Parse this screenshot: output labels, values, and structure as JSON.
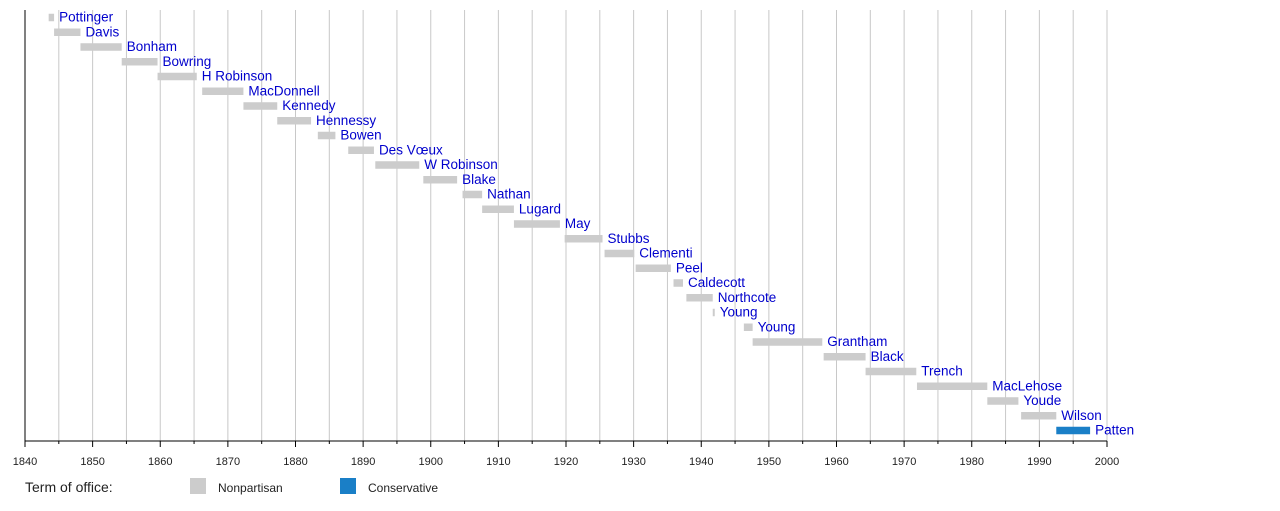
{
  "chart_data": {
    "type": "bar",
    "orientation": "horizontal-timeline",
    "xlim": [
      1840,
      2000
    ],
    "x_ticks": [
      "1840",
      "1850",
      "1860",
      "1870",
      "1880",
      "1890",
      "1900",
      "1910",
      "1920",
      "1930",
      "1940",
      "1950",
      "1960",
      "1970",
      "1980",
      "1990",
      "2000"
    ],
    "grid": "vertical every 5 years",
    "legend_position": "bottom-left",
    "legend": {
      "title": "Term of office:",
      "items": [
        {
          "label": "Nonpartisan",
          "color": "#cccccc"
        },
        {
          "label": "Conservative",
          "color": "#1a7fc7"
        }
      ]
    },
    "series": [
      {
        "name": "Pottinger",
        "start": 1843.5,
        "end": 1844.3,
        "party": "Nonpartisan"
      },
      {
        "name": "Davis",
        "start": 1844.3,
        "end": 1848.2,
        "party": "Nonpartisan"
      },
      {
        "name": "Bonham",
        "start": 1848.2,
        "end": 1854.3,
        "party": "Nonpartisan"
      },
      {
        "name": "Bowring",
        "start": 1854.3,
        "end": 1859.6,
        "party": "Nonpartisan"
      },
      {
        "name": "H Robinson",
        "start": 1859.6,
        "end": 1865.4,
        "party": "Nonpartisan"
      },
      {
        "name": "MacDonnell",
        "start": 1866.2,
        "end": 1872.3,
        "party": "Nonpartisan"
      },
      {
        "name": "Kennedy",
        "start": 1872.3,
        "end": 1877.3,
        "party": "Nonpartisan"
      },
      {
        "name": "Hennessy",
        "start": 1877.3,
        "end": 1882.3,
        "party": "Nonpartisan"
      },
      {
        "name": "Bowen",
        "start": 1883.3,
        "end": 1885.9,
        "party": "Nonpartisan"
      },
      {
        "name": "Des Vœux",
        "start": 1887.8,
        "end": 1891.6,
        "party": "Nonpartisan"
      },
      {
        "name": "W Robinson",
        "start": 1891.8,
        "end": 1898.3,
        "party": "Nonpartisan"
      },
      {
        "name": "Blake",
        "start": 1898.9,
        "end": 1903.9,
        "party": "Nonpartisan"
      },
      {
        "name": "Nathan",
        "start": 1904.7,
        "end": 1907.6,
        "party": "Nonpartisan"
      },
      {
        "name": "Lugard",
        "start": 1907.6,
        "end": 1912.3,
        "party": "Nonpartisan"
      },
      {
        "name": "May",
        "start": 1912.3,
        "end": 1919.1,
        "party": "Nonpartisan"
      },
      {
        "name": "Stubbs",
        "start": 1919.8,
        "end": 1925.4,
        "party": "Nonpartisan"
      },
      {
        "name": "Clementi",
        "start": 1925.7,
        "end": 1930.1,
        "party": "Nonpartisan"
      },
      {
        "name": "Peel",
        "start": 1930.3,
        "end": 1935.5,
        "party": "Nonpartisan"
      },
      {
        "name": "Caldecott",
        "start": 1935.9,
        "end": 1937.3,
        "party": "Nonpartisan"
      },
      {
        "name": "Northcote",
        "start": 1937.8,
        "end": 1941.7,
        "party": "Nonpartisan"
      },
      {
        "name": "Young",
        "start": 1941.7,
        "end": 1941.95,
        "party": "Nonpartisan"
      },
      {
        "name": "Young",
        "start": 1946.3,
        "end": 1947.6,
        "party": "Nonpartisan"
      },
      {
        "name": "Grantham",
        "start": 1947.6,
        "end": 1957.9,
        "party": "Nonpartisan"
      },
      {
        "name": "Black",
        "start": 1958.1,
        "end": 1964.3,
        "party": "Nonpartisan"
      },
      {
        "name": "Trench",
        "start": 1964.3,
        "end": 1971.8,
        "party": "Nonpartisan"
      },
      {
        "name": "MacLehose",
        "start": 1971.9,
        "end": 1982.3,
        "party": "Nonpartisan"
      },
      {
        "name": "Youde",
        "start": 1982.3,
        "end": 1986.9,
        "party": "Nonpartisan"
      },
      {
        "name": "Wilson",
        "start": 1987.3,
        "end": 1992.5,
        "party": "Nonpartisan"
      },
      {
        "name": "Patten",
        "start": 1992.5,
        "end": 1997.5,
        "party": "Conservative"
      }
    ]
  }
}
